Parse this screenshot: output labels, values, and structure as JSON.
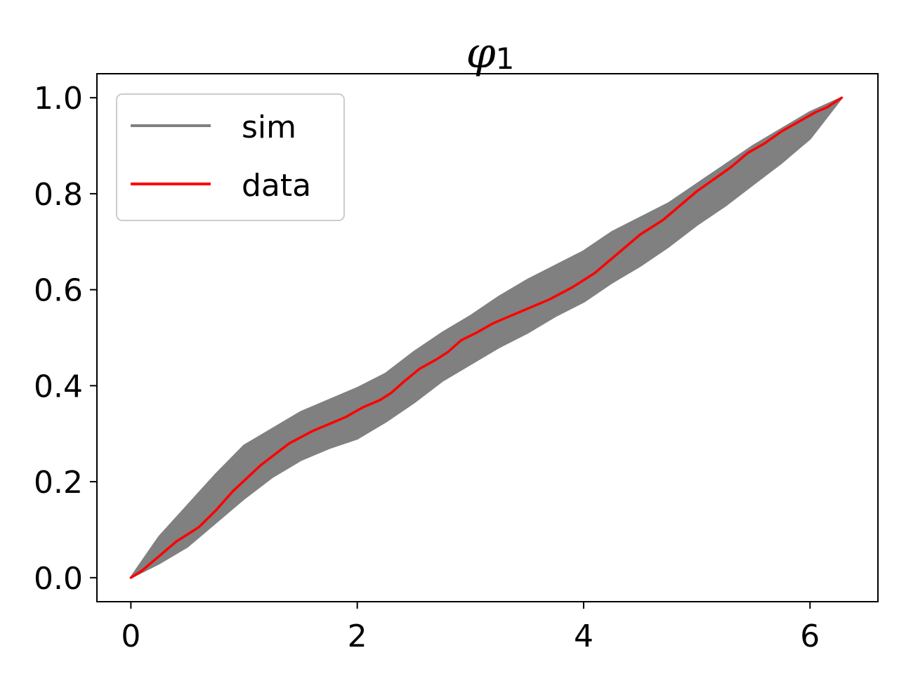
{
  "chart_data": {
    "type": "line",
    "title": "φ",
    "title_subscript": "1",
    "xlabel": "",
    "ylabel": "",
    "xlim": [
      -0.3,
      6.6
    ],
    "ylim": [
      -0.05,
      1.05
    ],
    "xticks": [
      0,
      2,
      4,
      6
    ],
    "yticks": [
      0.0,
      0.2,
      0.4,
      0.6,
      0.8,
      1.0
    ],
    "xtick_labels": [
      "0",
      "2",
      "4",
      "6"
    ],
    "ytick_labels": [
      "0.0",
      "0.2",
      "0.4",
      "0.6",
      "0.8",
      "1.0"
    ],
    "grid": false,
    "legend_position": "top-left",
    "series": [
      {
        "name": "sim",
        "color": "#808080",
        "kind": "band",
        "x": [
          0,
          0.25,
          0.5,
          0.75,
          1.0,
          1.25,
          1.5,
          1.75,
          2.0,
          2.25,
          2.5,
          2.75,
          3.0,
          3.25,
          3.5,
          3.75,
          4.0,
          4.25,
          4.5,
          4.75,
          5.0,
          5.25,
          5.5,
          5.75,
          6.0,
          6.28
        ],
        "upper": [
          0,
          0.085,
          0.15,
          0.215,
          0.275,
          0.31,
          0.345,
          0.37,
          0.395,
          0.425,
          0.47,
          0.51,
          0.545,
          0.585,
          0.62,
          0.65,
          0.68,
          0.72,
          0.75,
          0.78,
          0.82,
          0.86,
          0.9,
          0.935,
          0.97,
          1.0
        ],
        "lower": [
          0,
          0.03,
          0.065,
          0.115,
          0.165,
          0.21,
          0.245,
          0.27,
          0.29,
          0.325,
          0.365,
          0.41,
          0.445,
          0.48,
          0.51,
          0.545,
          0.575,
          0.615,
          0.65,
          0.69,
          0.735,
          0.775,
          0.82,
          0.865,
          0.915,
          1.0
        ]
      },
      {
        "name": "data",
        "color": "#ff0000",
        "kind": "line",
        "x": [
          0,
          0.1,
          0.25,
          0.4,
          0.6,
          0.75,
          0.9,
          1.15,
          1.4,
          1.6,
          1.75,
          1.9,
          2.05,
          2.2,
          2.3,
          2.42,
          2.55,
          2.7,
          2.8,
          2.92,
          3.05,
          3.2,
          3.35,
          3.5,
          3.7,
          3.9,
          4.0,
          4.1,
          4.2,
          4.35,
          4.5,
          4.7,
          4.85,
          5.0,
          5.15,
          5.3,
          5.45,
          5.6,
          5.75,
          5.9,
          6.05,
          6.15,
          6.28
        ],
        "values": [
          0.0,
          0.015,
          0.045,
          0.075,
          0.105,
          0.14,
          0.18,
          0.235,
          0.28,
          0.305,
          0.32,
          0.335,
          0.355,
          0.37,
          0.385,
          0.41,
          0.435,
          0.455,
          0.47,
          0.495,
          0.51,
          0.53,
          0.545,
          0.56,
          0.58,
          0.605,
          0.62,
          0.635,
          0.655,
          0.685,
          0.715,
          0.745,
          0.775,
          0.805,
          0.83,
          0.855,
          0.885,
          0.905,
          0.93,
          0.95,
          0.97,
          0.98,
          1.0
        ]
      }
    ]
  }
}
